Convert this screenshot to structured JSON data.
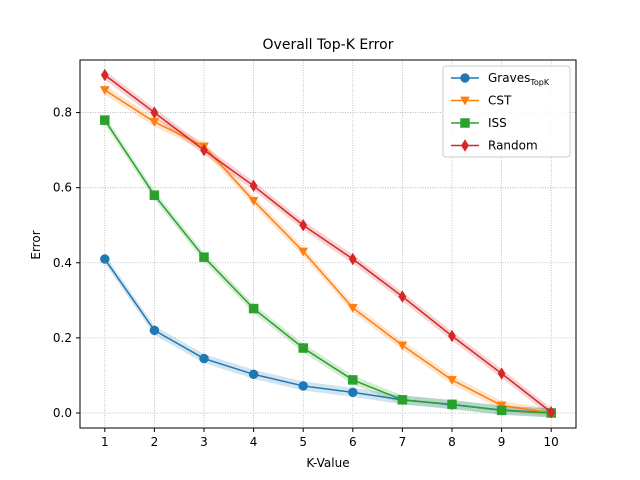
{
  "chart_data": {
    "type": "line",
    "title": "Overall Top-K Error",
    "xlabel": "K-Value",
    "ylabel": "Error",
    "x": [
      1,
      2,
      3,
      4,
      5,
      6,
      7,
      8,
      9,
      10
    ],
    "xlim": [
      0.5,
      10.5
    ],
    "ylim": [
      -0.04,
      0.94
    ],
    "yticks": [
      0.0,
      0.2,
      0.4,
      0.6,
      0.8
    ],
    "ytick_labels": [
      "0.0",
      "0.2",
      "0.4",
      "0.6",
      "0.8"
    ],
    "xtick_labels": [
      "1",
      "2",
      "3",
      "4",
      "5",
      "6",
      "7",
      "8",
      "9",
      "10"
    ],
    "grid": true,
    "legend_position": "top-right",
    "series": [
      {
        "name": "Graves",
        "name_subscript": "TopK",
        "color": "#1f77b4",
        "marker": "circle",
        "values": [
          0.41,
          0.22,
          0.145,
          0.103,
          0.072,
          0.055,
          0.035,
          0.022,
          0.008,
          0.0
        ]
      },
      {
        "name": "CST",
        "color": "#ff7f0e",
        "marker": "triangle-down",
        "values": [
          0.86,
          0.775,
          0.71,
          0.565,
          0.43,
          0.28,
          0.18,
          0.088,
          0.02,
          0.0
        ]
      },
      {
        "name": "ISS",
        "color": "#2ca02c",
        "marker": "square",
        "values": [
          0.78,
          0.58,
          0.415,
          0.278,
          0.173,
          0.088,
          0.035,
          0.023,
          0.007,
          0.0
        ]
      },
      {
        "name": "Random",
        "color": "#d62728",
        "marker": "diamond",
        "values": [
          0.9,
          0.8,
          0.7,
          0.605,
          0.5,
          0.41,
          0.31,
          0.205,
          0.105,
          0.002
        ]
      }
    ]
  }
}
